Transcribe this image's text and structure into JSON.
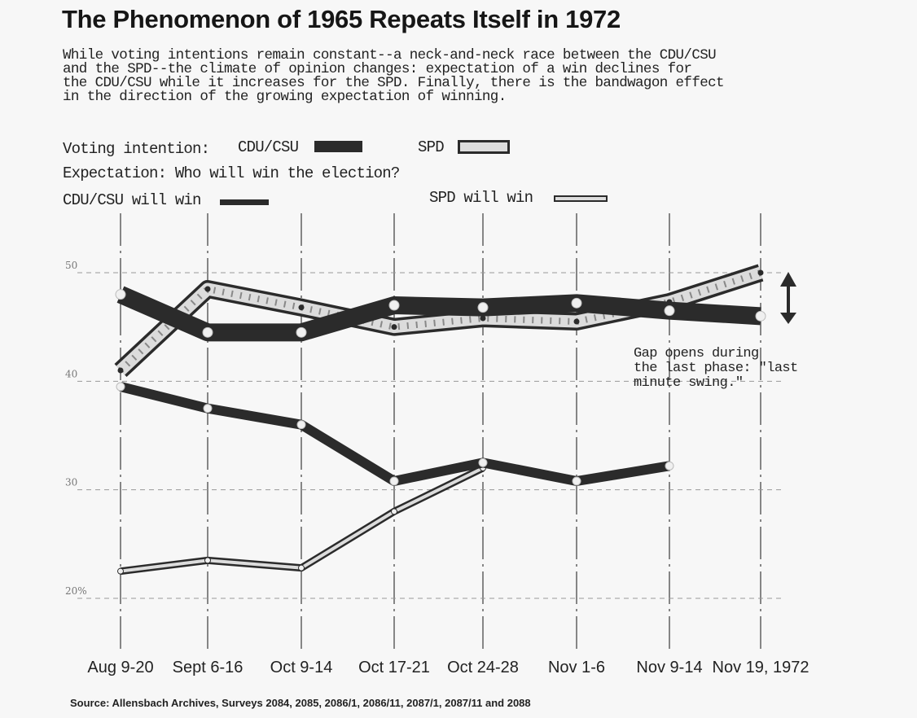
{
  "title": "The Phenomenon of 1965 Repeats Itself in 1972",
  "intro_lines": [
    "While voting intentions remain constant--a neck-and-neck race between the CDU/CSU",
    "and the SPD--the climate of opinion changes:  expectation of a win declines for",
    "the CDU/CSU while it increases for the SPD.  Finally, there is the bandwagon effect",
    "in the direction of the growing expectation of winning."
  ],
  "legend": {
    "voting_label": "Voting intention:",
    "cdu_label": "CDU/CSU",
    "spd_label": "SPD",
    "expectation_label": "Expectation:  Who will win the election?",
    "cdu_win_label": "CDU/CSU will win",
    "spd_win_label": "SPD will win"
  },
  "annotation_lines": [
    "Gap opens during",
    "the last phase: \"last",
    "minute swing.\""
  ],
  "source": "Source:  Allensbach Archives,       Surveys 2084, 2085, 2086/1, 2086/11, 2087/1, 2087/11 and 2088",
  "colors": {
    "dark": "#2b2b2b",
    "light_fill": "#dcdcdc",
    "background": "#f7f7f7",
    "grid": "#555555"
  },
  "chart_data": {
    "type": "line",
    "categories": [
      "Aug 9-20",
      "Sept 6-16",
      "Oct 9-14",
      "Oct 17-21",
      "Oct 24-28",
      "Nov 1-6",
      "Nov 9-14",
      "Nov 19, 1972"
    ],
    "y_ticks": [
      "50",
      "40",
      "30",
      "20%"
    ],
    "ylim": [
      18,
      54
    ],
    "grid": true,
    "series": [
      {
        "name": "CDU/CSU",
        "style": "thick-dark",
        "values": [
          48.0,
          44.5,
          44.5,
          47.0,
          46.8,
          47.2,
          46.5,
          46.0
        ]
      },
      {
        "name": "SPD",
        "style": "thick-hollow",
        "values": [
          41.0,
          48.5,
          46.8,
          45.0,
          45.8,
          45.5,
          47.3,
          50.0
        ]
      },
      {
        "name": "CDU/CSU will win",
        "style": "thin-dark",
        "values": [
          39.5,
          37.5,
          36.0,
          30.8,
          32.5,
          30.8,
          32.2,
          null
        ]
      },
      {
        "name": "SPD will win",
        "style": "thin-hollow",
        "values": [
          22.5,
          23.5,
          22.8,
          28.0,
          32.0,
          null,
          null,
          null
        ]
      }
    ]
  }
}
